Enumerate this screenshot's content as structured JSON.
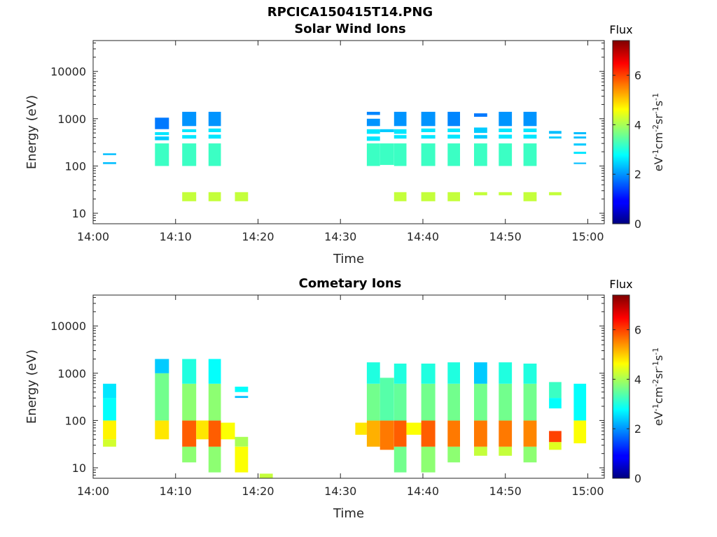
{
  "title": "RPCICA150415T14.PNG",
  "colorbar": {
    "label_parts": [
      "eV",
      "-1",
      "cm",
      "-2",
      "sr",
      "-1",
      "s",
      "-1"
    ],
    "ticks": [
      0,
      2,
      4,
      6
    ],
    "range": [
      0,
      7.4
    ],
    "colormap": "jet"
  },
  "chart_data": [
    {
      "type": "heatmap",
      "title": "Solar Wind Ions",
      "xlabel": "Time",
      "ylabel": "Energy (eV)",
      "colorbar_title": "Flux",
      "xticks": [
        "14:00",
        "14:10",
        "14:20",
        "14:30",
        "14:40",
        "14:50",
        "15:00"
      ],
      "yticks": [
        "10",
        "100",
        "1000",
        "10000"
      ],
      "yscale": "log",
      "ylim": [
        6,
        45000
      ],
      "xlim_minutes": [
        0,
        62
      ],
      "columns": [
        {
          "t": [
            1.2,
            2.8
          ],
          "bands": [
            [
              110,
              120,
              2.3
            ],
            [
              170,
              185,
              2.3
            ]
          ]
        },
        {
          "t": [
            7.5,
            9.2
          ],
          "bands": [
            [
              100,
              300,
              3.2
            ],
            [
              350,
              420,
              2.4
            ],
            [
              450,
              520,
              2.6
            ],
            [
              600,
              1050,
              1.8
            ]
          ]
        },
        {
          "t": [
            10.8,
            12.5
          ],
          "bands": [
            [
              18,
              28,
              4.2
            ],
            [
              100,
              300,
              3.2
            ],
            [
              380,
              450,
              2.6
            ],
            [
              520,
              600,
              2.6
            ],
            [
              700,
              1400,
              2.0
            ]
          ]
        },
        {
          "t": [
            14.0,
            15.5
          ],
          "bands": [
            [
              18,
              28,
              4.2
            ],
            [
              100,
              300,
              3.2
            ],
            [
              380,
              460,
              2.6
            ],
            [
              520,
              620,
              2.6
            ],
            [
              700,
              1400,
              2.0
            ]
          ]
        },
        {
          "t": [
            17.2,
            18.8
          ],
          "bands": [
            [
              18,
              28,
              4.2
            ]
          ]
        },
        {
          "t": [
            33.2,
            34.8
          ],
          "bands": [
            [
              100,
              300,
              3.2
            ],
            [
              340,
              420,
              2.6
            ],
            [
              480,
              600,
              2.6
            ],
            [
              700,
              1000,
              2.0
            ],
            [
              1200,
              1400,
              1.9
            ]
          ]
        },
        {
          "t": [
            34.8,
            36.5
          ],
          "bands": [
            [
              105,
              300,
              3.2
            ],
            [
              520,
              600,
              2.4
            ]
          ]
        },
        {
          "t": [
            36.5,
            38.0
          ],
          "bands": [
            [
              18,
              28,
              4.2
            ],
            [
              100,
              300,
              3.2
            ],
            [
              380,
              450,
              2.6
            ],
            [
              480,
              600,
              2.6
            ],
            [
              700,
              1400,
              2.0
            ]
          ]
        },
        {
          "t": [
            39.8,
            41.5
          ],
          "bands": [
            [
              18,
              28,
              4.2
            ],
            [
              100,
              300,
              3.2
            ],
            [
              380,
              450,
              2.6
            ],
            [
              520,
              620,
              2.6
            ],
            [
              700,
              1400,
              2.0
            ]
          ]
        },
        {
          "t": [
            43.0,
            44.5
          ],
          "bands": [
            [
              18,
              28,
              4.2
            ],
            [
              100,
              300,
              3.2
            ],
            [
              380,
              460,
              2.6
            ],
            [
              520,
              620,
              2.6
            ],
            [
              700,
              1400,
              1.9
            ]
          ]
        },
        {
          "t": [
            46.2,
            47.8
          ],
          "bands": [
            [
              24,
              28,
              4.2
            ],
            [
              100,
              300,
              3.2
            ],
            [
              380,
              450,
              2.4
            ],
            [
              500,
              650,
              2.4
            ],
            [
              1100,
              1300,
              1.8
            ]
          ]
        },
        {
          "t": [
            49.2,
            50.8
          ],
          "bands": [
            [
              24,
              28,
              4.2
            ],
            [
              100,
              300,
              3.2
            ],
            [
              380,
              460,
              2.6
            ],
            [
              520,
              620,
              2.6
            ],
            [
              700,
              1400,
              2.0
            ]
          ]
        },
        {
          "t": [
            52.2,
            53.8
          ],
          "bands": [
            [
              18,
              28,
              4.2
            ],
            [
              100,
              300,
              3.2
            ],
            [
              380,
              460,
              2.6
            ],
            [
              520,
              620,
              2.6
            ],
            [
              700,
              1400,
              2.0
            ]
          ]
        },
        {
          "t": [
            55.3,
            56.8
          ],
          "bands": [
            [
              24,
              28,
              4.2
            ],
            [
              380,
              420,
              2.4
            ],
            [
              480,
              550,
              2.3
            ]
          ]
        },
        {
          "t": [
            58.3,
            59.8
          ],
          "bands": [
            [
              110,
              118,
              2.3
            ],
            [
              180,
              200,
              2.6
            ],
            [
              270,
              300,
              2.4
            ],
            [
              380,
              420,
              2.3
            ],
            [
              470,
              520,
              2.3
            ]
          ]
        }
      ]
    },
    {
      "type": "heatmap",
      "title": "Cometary Ions",
      "xlabel": "Time",
      "ylabel": "Energy (eV)",
      "colorbar_title": "Flux",
      "xticks": [
        "14:00",
        "14:10",
        "14:20",
        "14:30",
        "14:40",
        "14:50",
        "15:00"
      ],
      "yticks": [
        "10",
        "100",
        "1000",
        "10000"
      ],
      "yscale": "log",
      "ylim": [
        6,
        45000
      ],
      "xlim_minutes": [
        0,
        62
      ],
      "columns": [
        {
          "t": [
            1.2,
            2.8
          ],
          "bands": [
            [
              28,
              40,
              4.3
            ],
            [
              40,
              100,
              4.7
            ],
            [
              100,
              300,
              2.8
            ],
            [
              300,
              600,
              2.6
            ]
          ]
        },
        {
          "t": [
            7.5,
            9.2
          ],
          "bands": [
            [
              40,
              100,
              4.8
            ],
            [
              100,
              1000,
              3.6
            ],
            [
              1000,
              2000,
              2.4
            ]
          ]
        },
        {
          "t": [
            10.8,
            12.5
          ],
          "bands": [
            [
              13,
              28,
              3.8
            ],
            [
              28,
              100,
              5.8
            ],
            [
              100,
              600,
              3.8
            ],
            [
              600,
              2000,
              3.0
            ]
          ]
        },
        {
          "t": [
            12.5,
            14.0
          ],
          "bands": [
            [
              40,
              100,
              4.8
            ]
          ]
        },
        {
          "t": [
            14.0,
            15.5
          ],
          "bands": [
            [
              8,
              28,
              3.8
            ],
            [
              28,
              100,
              5.8
            ],
            [
              100,
              600,
              3.8
            ],
            [
              600,
              2000,
              2.8
            ]
          ]
        },
        {
          "t": [
            15.5,
            17.2
          ],
          "bands": [
            [
              40,
              90,
              4.6
            ]
          ]
        },
        {
          "t": [
            17.2,
            18.8
          ],
          "bands": [
            [
              8,
              28,
              4.6
            ],
            [
              28,
              45,
              4.0
            ],
            [
              300,
              330,
              2.3
            ],
            [
              400,
              520,
              2.8
            ]
          ]
        },
        {
          "t": [
            20.2,
            21.8
          ],
          "bands": [
            [
              6,
              7.5,
              4.2
            ]
          ]
        },
        {
          "t": [
            31.8,
            33.2
          ],
          "bands": [
            [
              50,
              90,
              4.8
            ]
          ]
        },
        {
          "t": [
            33.2,
            34.8
          ],
          "bands": [
            [
              28,
              100,
              5.2
            ],
            [
              100,
              600,
              3.6
            ],
            [
              600,
              1700,
              3.0
            ]
          ]
        },
        {
          "t": [
            34.8,
            36.5
          ],
          "bands": [
            [
              24,
              100,
              5.6
            ],
            [
              100,
              800,
              3.4
            ]
          ]
        },
        {
          "t": [
            36.5,
            38.0
          ],
          "bands": [
            [
              8,
              28,
              3.6
            ],
            [
              28,
              100,
              5.8
            ],
            [
              100,
              600,
              3.5
            ],
            [
              600,
              1600,
              3.0
            ]
          ]
        },
        {
          "t": [
            38.0,
            39.8
          ],
          "bands": [
            [
              50,
              90,
              4.6
            ]
          ]
        },
        {
          "t": [
            39.8,
            41.5
          ],
          "bands": [
            [
              8,
              28,
              3.8
            ],
            [
              28,
              100,
              5.8
            ],
            [
              100,
              600,
              3.6
            ],
            [
              600,
              1600,
              3.0
            ]
          ]
        },
        {
          "t": [
            43.0,
            44.5
          ],
          "bands": [
            [
              13,
              28,
              3.8
            ],
            [
              28,
              100,
              5.6
            ],
            [
              100,
              600,
              3.6
            ],
            [
              600,
              1700,
              3.0
            ]
          ]
        },
        {
          "t": [
            46.2,
            47.8
          ],
          "bands": [
            [
              18,
              28,
              4.2
            ],
            [
              28,
              100,
              5.6
            ],
            [
              100,
              600,
              3.6
            ],
            [
              600,
              1700,
              2.4
            ]
          ]
        },
        {
          "t": [
            49.2,
            50.8
          ],
          "bands": [
            [
              18,
              28,
              4.2
            ],
            [
              28,
              100,
              5.6
            ],
            [
              100,
              600,
              3.6
            ],
            [
              600,
              1700,
              3.0
            ]
          ]
        },
        {
          "t": [
            52.2,
            53.8
          ],
          "bands": [
            [
              13,
              28,
              3.8
            ],
            [
              28,
              100,
              5.5
            ],
            [
              100,
              600,
              3.6
            ],
            [
              600,
              1600,
              3.0
            ]
          ]
        },
        {
          "t": [
            55.3,
            56.8
          ],
          "bands": [
            [
              24,
              35,
              4.4
            ],
            [
              35,
              60,
              6.0
            ],
            [
              180,
              300,
              2.8
            ],
            [
              300,
              650,
              3.2
            ]
          ]
        },
        {
          "t": [
            58.3,
            59.8
          ],
          "bands": [
            [
              33,
              100,
              4.6
            ],
            [
              100,
              200,
              2.8
            ],
            [
              200,
              600,
              2.8
            ]
          ]
        }
      ]
    }
  ]
}
